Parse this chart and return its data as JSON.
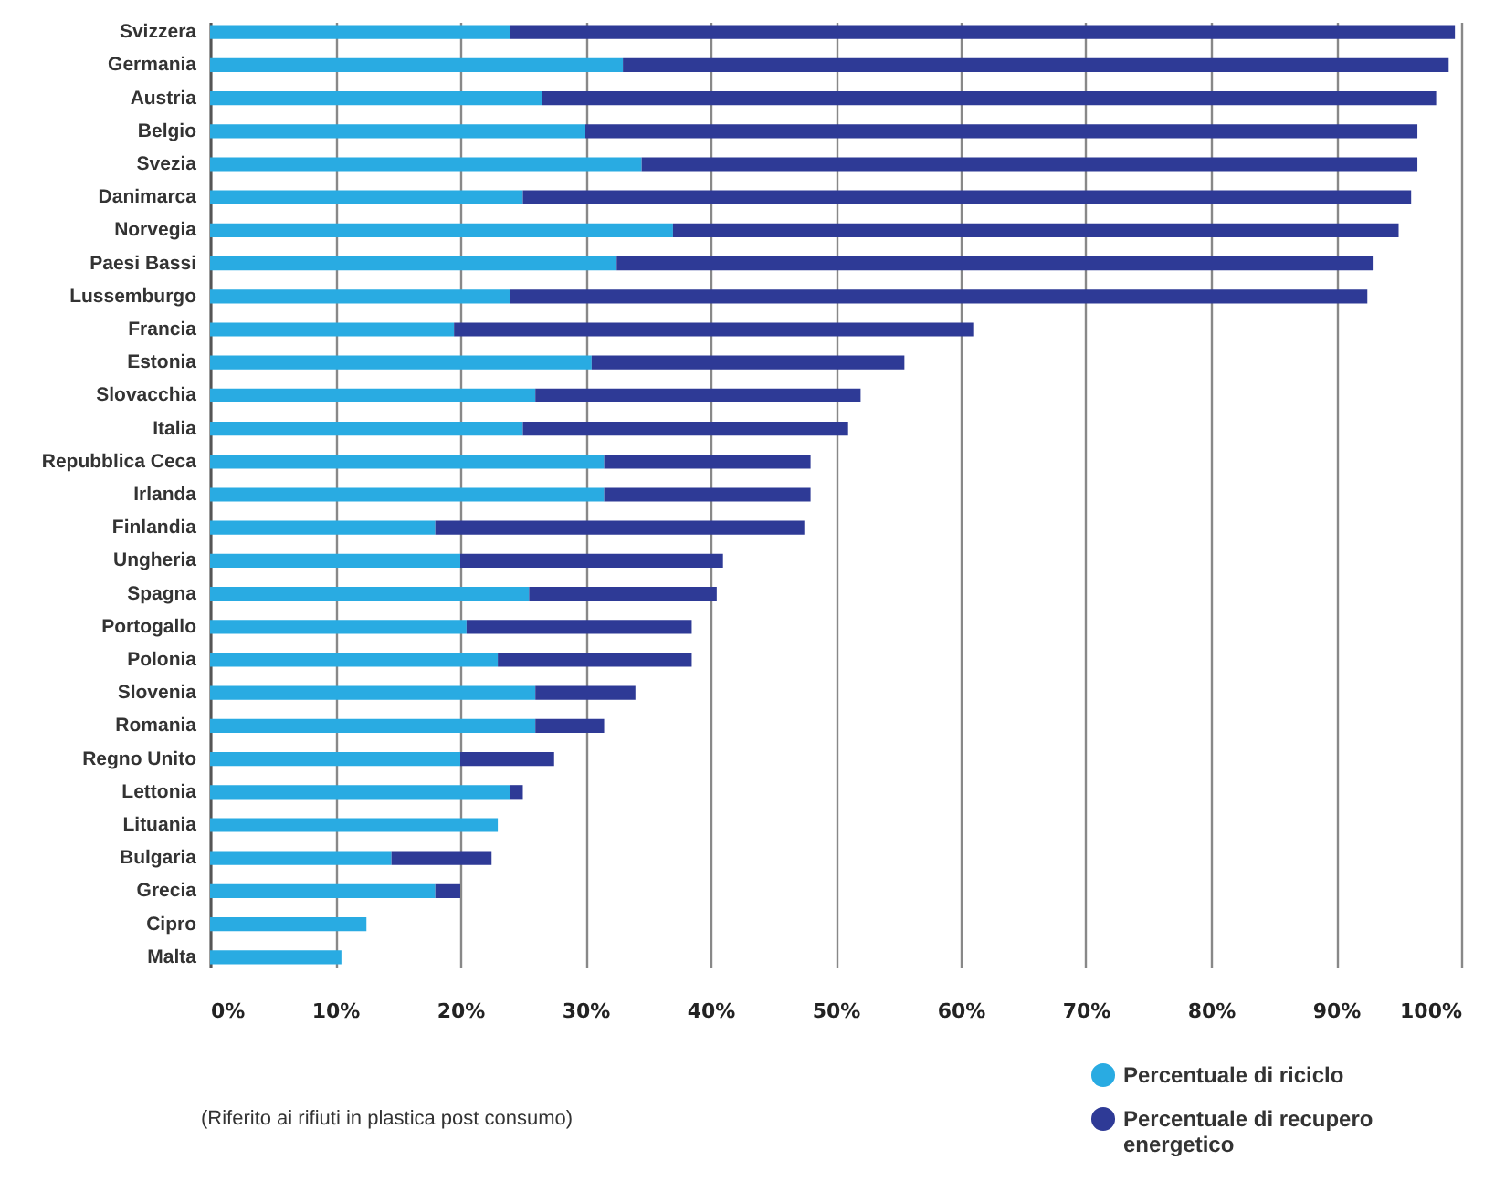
{
  "chart_data": {
    "type": "bar",
    "orientation": "horizontal",
    "stacked": true,
    "categories": [
      "Svizzera",
      "Germania",
      "Austria",
      "Belgio",
      "Svezia",
      "Danimarca",
      "Norvegia",
      "Paesi Bassi",
      "Lussemburgo",
      "Francia",
      "Estonia",
      "Slovacchia",
      "Italia",
      "Repubblica Ceca",
      "Irlanda",
      "Finlandia",
      "Ungheria",
      "Spagna",
      "Portogallo",
      "Polonia",
      "Slovenia",
      "Romania",
      "Regno Unito",
      "Lettonia",
      "Lituania",
      "Bulgaria",
      "Grecia",
      "Cipro",
      "Malta"
    ],
    "series": [
      {
        "name": "Percentuale di riciclo",
        "color": "#29abe2",
        "values": [
          24,
          33,
          26.5,
          30,
          34.5,
          25,
          37,
          32.5,
          24,
          19.5,
          30.5,
          26,
          25,
          31.5,
          31.5,
          18,
          20,
          25.5,
          20.5,
          23,
          26,
          26,
          20,
          24,
          23,
          14.5,
          18,
          12.5,
          10.5
        ]
      },
      {
        "name": "Percentuale di recupero energetico",
        "color": "#2e3a96",
        "values": [
          75.5,
          66,
          71.5,
          66.5,
          62,
          71,
          58,
          60.5,
          68.5,
          41.5,
          25,
          26,
          26,
          16.5,
          16.5,
          29.5,
          21,
          15,
          18,
          15.5,
          8,
          5.5,
          7.5,
          1,
          0,
          8,
          2,
          0,
          0
        ]
      }
    ],
    "xlim": [
      0,
      100
    ],
    "xticks": [
      {
        "value": 0,
        "label": "0%"
      },
      {
        "value": 10,
        "label": "10%"
      },
      {
        "value": 20,
        "label": "20%"
      },
      {
        "value": 30,
        "label": "30%"
      },
      {
        "value": 40,
        "label": "40%"
      },
      {
        "value": 50,
        "label": "50%"
      },
      {
        "value": 60,
        "label": "60%"
      },
      {
        "value": 70,
        "label": "70%"
      },
      {
        "value": 80,
        "label": "80%"
      },
      {
        "value": 90,
        "label": "90%"
      },
      {
        "value": 100,
        "label": "100%"
      }
    ],
    "grid": "x",
    "legend": "bottom right",
    "annotations": [
      "(Riferito ai rifiuti in plastica post consumo)"
    ]
  }
}
